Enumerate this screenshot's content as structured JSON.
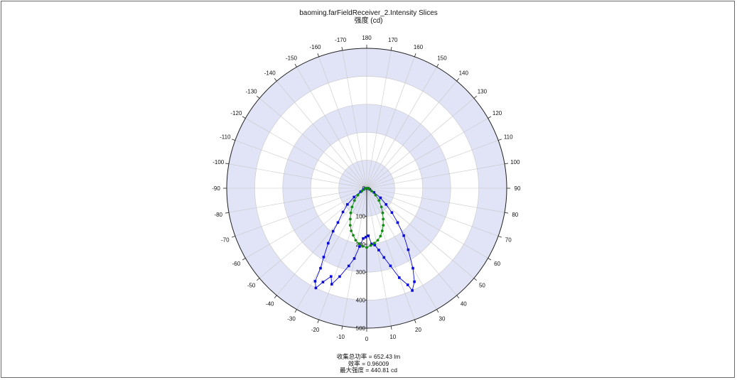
{
  "window": {
    "title": "baoming.farFieldReceiver_2.Intensity Slices",
    "subtitle": "强度 (cd)"
  },
  "stats": {
    "total_power": "收集总功率 = 652.43  lm",
    "efficiency": "效率 = 0.96009",
    "max_intensity": "最大强度 = 440.81  cd"
  },
  "colors": {
    "band_fill": "#e1e3f6",
    "grid": "#c8c8c8",
    "series_blue": "#0a0ad8",
    "series_green": "#138a13"
  },
  "chart_data": {
    "type": "scatter",
    "coordinate_system": "polar",
    "title": "baoming.farFieldReceiver_2.Intensity Slices",
    "radial_label": "强度 (cd)",
    "radial_range": [
      0,
      500
    ],
    "radial_ticks": [
      0,
      100,
      200,
      300,
      400,
      500
    ],
    "angular_ticks": [
      "180",
      "170",
      "160",
      "150",
      "140",
      "130",
      "120",
      "110",
      "100",
      "90",
      "80",
      "70",
      "60",
      "50",
      "40",
      "30",
      "20",
      "10",
      "0",
      "-10",
      "-20",
      "-30",
      "-40",
      "-50",
      "-60",
      "-70",
      "-80",
      "-90",
      "-100",
      "-110",
      "-120",
      "-130",
      "-140",
      "-150",
      "-160",
      "-170"
    ],
    "grid": true,
    "angle_zero_direction": "bottom",
    "series": [
      {
        "color": "#0a0ad8",
        "marker": "square",
        "points": [
          {
            "angle": -90,
            "r": 5
          },
          {
            "angle": -80,
            "r": 6
          },
          {
            "angle": -70,
            "r": 12
          },
          {
            "angle": -60,
            "r": 25
          },
          {
            "angle": -55,
            "r": 55
          },
          {
            "angle": -50,
            "r": 90
          },
          {
            "angle": -45,
            "r": 120
          },
          {
            "angle": -40,
            "r": 160
          },
          {
            "angle": -38,
            "r": 195
          },
          {
            "angle": -35,
            "r": 240
          },
          {
            "angle": -32,
            "r": 290
          },
          {
            "angle": -30,
            "r": 330
          },
          {
            "angle": -29,
            "r": 380
          },
          {
            "angle": -27,
            "r": 400
          },
          {
            "angle": -25,
            "r": 370
          },
          {
            "angle": -22,
            "r": 340
          },
          {
            "angle": -20,
            "r": 365
          },
          {
            "angle": -17,
            "r": 330
          },
          {
            "angle": -13,
            "r": 285
          },
          {
            "angle": -10,
            "r": 255
          },
          {
            "angle": -7,
            "r": 210
          },
          {
            "angle": -4,
            "r": 180
          },
          {
            "angle": -1,
            "r": 175
          },
          {
            "angle": 2,
            "r": 170
          },
          {
            "angle": 5,
            "r": 200
          },
          {
            "angle": 8,
            "r": 205
          },
          {
            "angle": 11,
            "r": 225
          },
          {
            "angle": 14,
            "r": 255
          },
          {
            "angle": 17,
            "r": 290
          },
          {
            "angle": 20,
            "r": 340
          },
          {
            "angle": 23,
            "r": 375
          },
          {
            "angle": 24,
            "r": 400
          },
          {
            "angle": 27,
            "r": 375
          },
          {
            "angle": 30,
            "r": 330
          },
          {
            "angle": 34,
            "r": 265
          },
          {
            "angle": 38,
            "r": 215
          },
          {
            "angle": 42,
            "r": 165
          },
          {
            "angle": 46,
            "r": 125
          },
          {
            "angle": 50,
            "r": 90
          },
          {
            "angle": 55,
            "r": 60
          },
          {
            "angle": 60,
            "r": 30
          },
          {
            "angle": 70,
            "r": 12
          },
          {
            "angle": 80,
            "r": 6
          },
          {
            "angle": 90,
            "r": 5
          }
        ]
      },
      {
        "color": "#138a13",
        "marker": "circle",
        "points": [
          {
            "angle": -90,
            "r": 4
          },
          {
            "angle": -75,
            "r": 8
          },
          {
            "angle": -60,
            "r": 20
          },
          {
            "angle": -52,
            "r": 40
          },
          {
            "angle": -45,
            "r": 62
          },
          {
            "angle": -38,
            "r": 85
          },
          {
            "angle": -33,
            "r": 105
          },
          {
            "angle": -28,
            "r": 125
          },
          {
            "angle": -24,
            "r": 145
          },
          {
            "angle": -20,
            "r": 162
          },
          {
            "angle": -16,
            "r": 175
          },
          {
            "angle": -12,
            "r": 190
          },
          {
            "angle": -8,
            "r": 200
          },
          {
            "angle": -4,
            "r": 208
          },
          {
            "angle": 0,
            "r": 212
          },
          {
            "angle": 4,
            "r": 205
          },
          {
            "angle": 8,
            "r": 198
          },
          {
            "angle": 12,
            "r": 190
          },
          {
            "angle": 16,
            "r": 178
          },
          {
            "angle": 20,
            "r": 162
          },
          {
            "angle": 24,
            "r": 145
          },
          {
            "angle": 28,
            "r": 125
          },
          {
            "angle": 33,
            "r": 105
          },
          {
            "angle": 38,
            "r": 85
          },
          {
            "angle": 45,
            "r": 62
          },
          {
            "angle": 52,
            "r": 40
          },
          {
            "angle": 60,
            "r": 20
          },
          {
            "angle": 75,
            "r": 8
          },
          {
            "angle": 90,
            "r": 4
          }
        ]
      }
    ]
  }
}
